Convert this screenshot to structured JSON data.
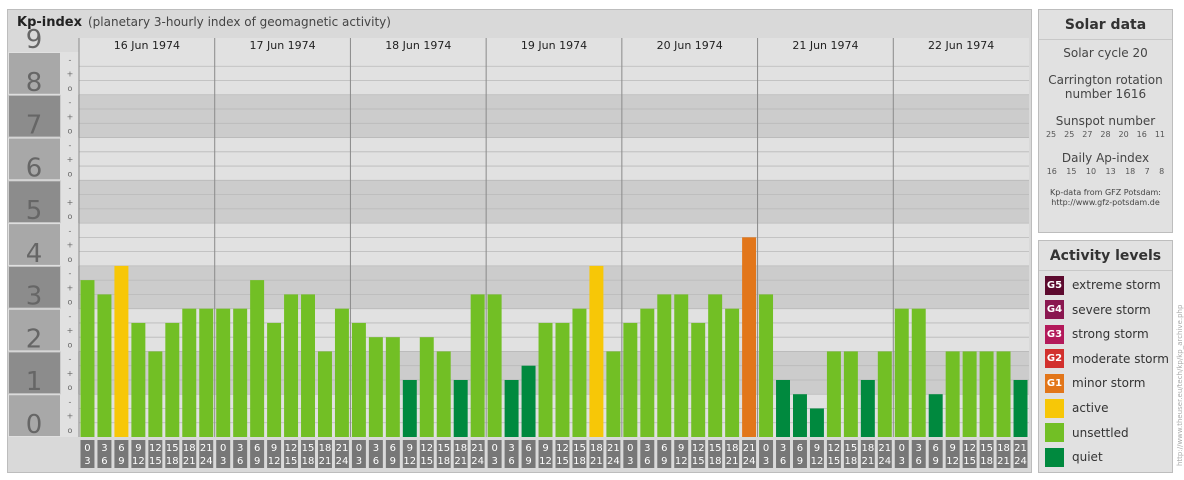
{
  "header": {
    "title": "Kp-index",
    "subtitle": "(planetary 3-hourly index of geomagnetic activity)"
  },
  "chart_data": {
    "type": "bar",
    "y_axis": {
      "range": [
        0,
        9
      ],
      "ticks": [
        "0",
        "1",
        "2",
        "3",
        "4",
        "5",
        "6",
        "7",
        "8",
        "9"
      ],
      "sub_ticks": [
        "o",
        "+",
        "-"
      ]
    },
    "days": [
      "16 Jun 1974",
      "17 Jun 1974",
      "18 Jun 1974",
      "19 Jun 1974",
      "20 Jun 1974",
      "21 Jun 1974",
      "22 Jun 1974"
    ],
    "hour_labels_top": [
      "0",
      "3",
      "6",
      "9",
      "12",
      "15",
      "18",
      "21"
    ],
    "hour_labels_bottom": [
      "3",
      "6",
      "9",
      "12",
      "15",
      "18",
      "21",
      "24"
    ],
    "values": [
      [
        3.667,
        3.333,
        4.0,
        2.667,
        2.0,
        2.667,
        3.0,
        3.0
      ],
      [
        3.0,
        3.0,
        3.667,
        2.667,
        3.333,
        3.333,
        2.0,
        3.0
      ],
      [
        2.667,
        2.333,
        2.333,
        1.333,
        2.333,
        2.0,
        1.333,
        3.333
      ],
      [
        3.333,
        1.333,
        1.667,
        2.667,
        2.667,
        3.0,
        4.0,
        2.0
      ],
      [
        2.667,
        3.0,
        3.333,
        3.333,
        2.667,
        3.333,
        3.0,
        4.667
      ],
      [
        3.333,
        1.333,
        1.0,
        0.667,
        2.0,
        2.0,
        1.333,
        2.0
      ],
      [
        3.0,
        3.0,
        1.0,
        2.0,
        2.0,
        2.0,
        2.0,
        1.333
      ]
    ],
    "color_levels": [
      {
        "min": 0,
        "max": 2,
        "level": "quiet",
        "color": "#00893e"
      },
      {
        "min": 2,
        "max": 4,
        "level": "unsettled",
        "color": "#72bf25"
      },
      {
        "min": 4,
        "max": 4.5,
        "level": "active",
        "color": "#f7c707"
      },
      {
        "min": 4.5,
        "max": 5.5,
        "level": "minor storm",
        "color": "#e2761a"
      }
    ],
    "colors": {
      "panel": "#d9d9d9",
      "band_dark": "#cccccc",
      "band_light": "#e1e1e1",
      "gridline": "#b9b9b9",
      "axis_dark": "#8c8c8c",
      "axis_light": "#a8a8a8",
      "hour_box": "#777777"
    }
  },
  "solar": {
    "title": "Solar data",
    "cycle": "Solar cycle 20",
    "carrington_line1": "Carrington rotation",
    "carrington_line2": "number 1616",
    "sunspot_title": "Sunspot number",
    "sunspot_values": [
      "25",
      "25",
      "27",
      "28",
      "20",
      "16",
      "11"
    ],
    "ap_title": "Daily Ap-index",
    "ap_values": [
      "16",
      "15",
      "10",
      "13",
      "18",
      "7",
      "8"
    ],
    "source_line1": "Kp-data from GFZ Potsdam:",
    "source_line2": "http://www.gfz-potsdam.de"
  },
  "activity": {
    "title": "Activity levels",
    "items": [
      {
        "code": "G5",
        "label": "extreme storm",
        "color": "#5c0a2e"
      },
      {
        "code": "G4",
        "label": "severe storm",
        "color": "#8a1750"
      },
      {
        "code": "G3",
        "label": "strong storm",
        "color": "#b3195a"
      },
      {
        "code": "G2",
        "label": "moderate storm",
        "color": "#d2302d"
      },
      {
        "code": "G1",
        "label": "minor storm",
        "color": "#e2761a"
      },
      {
        "code": "",
        "label": "active",
        "color": "#f7c707"
      },
      {
        "code": "",
        "label": "unsettled",
        "color": "#72bf25"
      },
      {
        "code": "",
        "label": "quiet",
        "color": "#00893e"
      }
    ]
  },
  "side_url": "http://www.theuser.eu/tech/kp/kp_archive.php"
}
